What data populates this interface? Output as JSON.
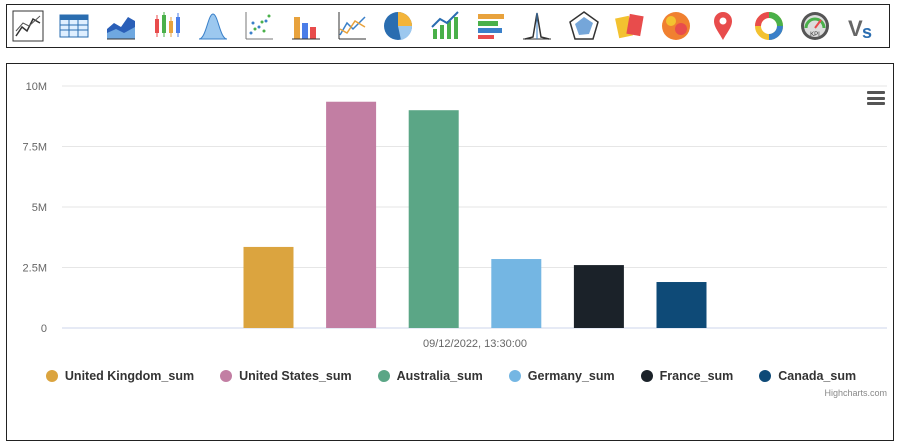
{
  "toolbar": {
    "icons": [
      "line-chart-icon",
      "table-icon",
      "area-chart-icon",
      "candlestick-icon",
      "bell-curve-icon",
      "scatter-icon",
      "bar-chart-icon",
      "multi-line-icon",
      "pie-chart-icon",
      "trend-icon",
      "stacked-bar-icon",
      "spike-icon",
      "radar-icon",
      "cards-icon",
      "bubble-icon",
      "map-pin-icon",
      "donut-icon",
      "kpi-gauge-icon",
      "vs-icon"
    ]
  },
  "colors": {
    "uk": "#DBA43F",
    "us": "#C27EA3",
    "au": "#5BA686",
    "de": "#74B6E3",
    "fr": "#1B2229",
    "ca": "#0E4A77"
  },
  "chart_data": {
    "type": "bar",
    "categories": [
      "09/12/2022, 13:30:00"
    ],
    "series": [
      {
        "name": "United Kingdom_sum",
        "values": [
          3350000
        ],
        "color": "#DBA43F"
      },
      {
        "name": "United States_sum",
        "values": [
          9350000
        ],
        "color": "#C27EA3"
      },
      {
        "name": "Australia_sum",
        "values": [
          9000000
        ],
        "color": "#5BA686"
      },
      {
        "name": "Germany_sum",
        "values": [
          2850000
        ],
        "color": "#74B6E3"
      },
      {
        "name": "France_sum",
        "values": [
          2600000
        ],
        "color": "#1B2229"
      },
      {
        "name": "Canada_sum",
        "values": [
          1900000
        ],
        "color": "#0E4A77"
      }
    ],
    "y_ticks": [
      "0",
      "2.5M",
      "5M",
      "7.5M",
      "10M"
    ],
    "ylim": [
      0,
      10000000
    ],
    "grid": true,
    "legend_position": "bottom",
    "credits": "Highcharts.com"
  }
}
